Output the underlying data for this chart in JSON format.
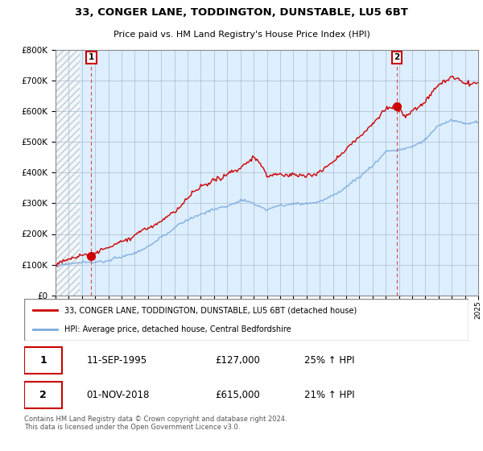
{
  "title": "33, CONGER LANE, TODDINGTON, DUNSTABLE, LU5 6BT",
  "subtitle": "Price paid vs. HM Land Registry's House Price Index (HPI)",
  "sale1_date": "11-SEP-1995",
  "sale1_price": 127000,
  "sale1_label": "1",
  "sale1_hpi_pct": "25% ↑ HPI",
  "sale2_date": "01-NOV-2018",
  "sale2_price": 615000,
  "sale2_label": "2",
  "sale2_hpi_pct": "21% ↑ HPI",
  "legend_line1": "33, CONGER LANE, TODDINGTON, DUNSTABLE, LU5 6BT (detached house)",
  "legend_line2": "HPI: Average price, detached house, Central Bedfordshire",
  "footer": "Contains HM Land Registry data © Crown copyright and database right 2024.\nThis data is licensed under the Open Government Licence v3.0.",
  "house_color": "#cc0000",
  "hpi_color": "#7aaadd",
  "dashed_line_color": "#dd4444",
  "plot_bg_color": "#ddeeff",
  "ylim": [
    0,
    800000
  ],
  "yticks": [
    0,
    100000,
    200000,
    300000,
    400000,
    500000,
    600000,
    700000,
    800000
  ],
  "sale1_year_f": 1995.7,
  "sale2_year_f": 2018.83
}
